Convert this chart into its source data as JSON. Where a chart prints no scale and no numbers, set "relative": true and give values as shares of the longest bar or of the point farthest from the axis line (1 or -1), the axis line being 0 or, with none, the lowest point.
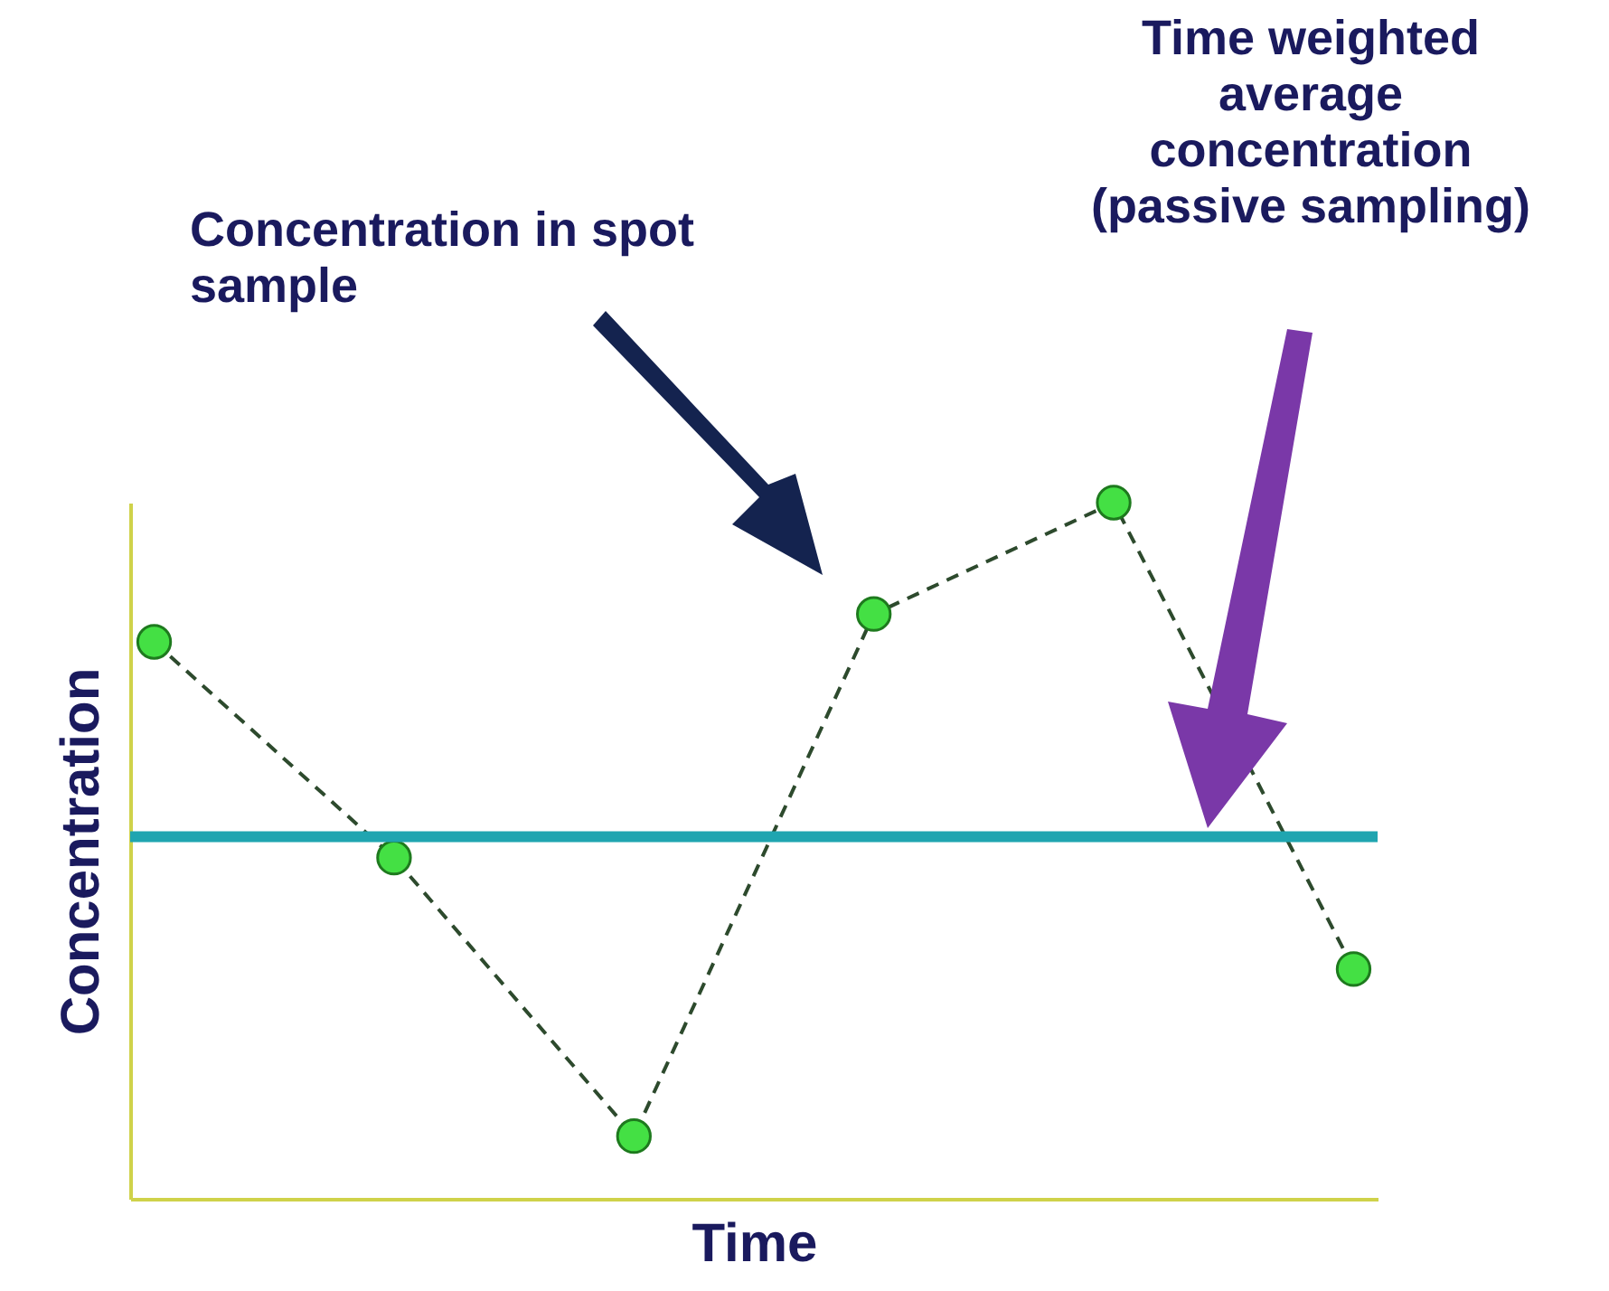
{
  "chart_data": {
    "type": "line",
    "relative": true,
    "xlabel": "Time",
    "ylabel": "Concentration",
    "categories": [
      null,
      null,
      null,
      null,
      null,
      null
    ],
    "series": [
      {
        "color": "#2d4a2d",
        "values": [
          0.8,
          0.49,
          0.09,
          0.84,
          1,
          0.33
        ]
      }
    ],
    "marker": "circle",
    "line_style": "dashed",
    "grid": false,
    "tick_labels": false,
    "ref_lines": [
      {
        "axis": "y",
        "value": 0.52,
        "color": "#1fa5b0"
      }
    ],
    "annotations": [
      "Concentration in spot sample",
      "Time weighted average concentration (passive sampling)"
    ]
  }
}
